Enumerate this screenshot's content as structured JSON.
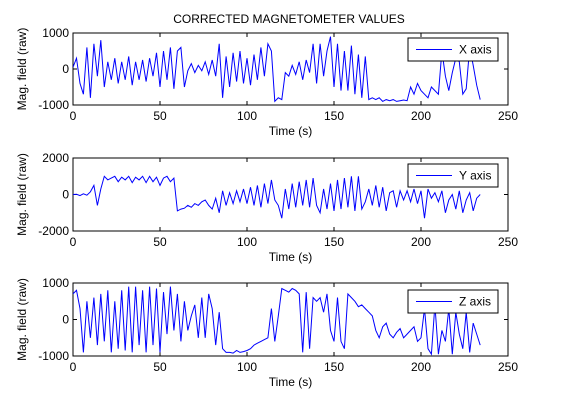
{
  "figure": {
    "title": "CORRECTED MAGNETOMETER VALUES"
  },
  "colors": {
    "line": "#0000ff",
    "axes": "#000000",
    "background": "#ffffff"
  },
  "chart_data": [
    {
      "type": "line",
      "title": "CORRECTED MAGNETOMETER VALUES",
      "xlabel": "Time (s)",
      "ylabel": "Mag. field (raw)",
      "xlim": [
        0,
        250
      ],
      "ylim": [
        -1000,
        1000
      ],
      "xticks": [
        "0",
        "50",
        "100",
        "150",
        "200",
        "250"
      ],
      "yticks": [
        "1000",
        "0",
        "-1000"
      ],
      "legend": "top-right",
      "series": [
        {
          "name": "X axis",
          "x": [
            0,
            2,
            4,
            6,
            8,
            10,
            12,
            14,
            16,
            18,
            20,
            22,
            24,
            26,
            28,
            30,
            32,
            34,
            36,
            38,
            40,
            42,
            44,
            46,
            48,
            50,
            52,
            54,
            56,
            58,
            60,
            62,
            64,
            66,
            68,
            70,
            72,
            74,
            76,
            78,
            80,
            82,
            84,
            86,
            88,
            90,
            92,
            94,
            96,
            98,
            100,
            102,
            104,
            106,
            108,
            110,
            112,
            114,
            116,
            118,
            120,
            122,
            124,
            126,
            128,
            130,
            132,
            134,
            136,
            138,
            140,
            142,
            144,
            146,
            148,
            150,
            152,
            154,
            156,
            158,
            160,
            162,
            164,
            166,
            168,
            170,
            172,
            174,
            176,
            178,
            180,
            182,
            184,
            186,
            188,
            190,
            192,
            194,
            196,
            198,
            200,
            202,
            204,
            206,
            208,
            210,
            212,
            214,
            216,
            218,
            220,
            222,
            224,
            226,
            228,
            230,
            232,
            234
          ],
          "y": [
            50,
            300,
            -400,
            -700,
            600,
            -800,
            700,
            -200,
            800,
            -500,
            200,
            -300,
            300,
            -400,
            200,
            -300,
            350,
            -450,
            200,
            -300,
            250,
            -350,
            300,
            -200,
            450,
            -500,
            500,
            -300,
            600,
            -550,
            500,
            600,
            -500,
            -50,
            150,
            -100,
            100,
            -50,
            200,
            -150,
            250,
            -200,
            700,
            -800,
            350,
            -500,
            450,
            -350,
            500,
            -400,
            300,
            -450,
            400,
            -300,
            600,
            -200,
            700,
            500,
            -900,
            -800,
            -850,
            -100,
            -200,
            100,
            -150,
            200,
            -300,
            250,
            -100,
            700,
            -400,
            700,
            -200,
            500,
            900,
            -500,
            700,
            -600,
            500,
            -600,
            650,
            -700,
            400,
            -800,
            350,
            -850,
            -800,
            -850,
            -800,
            -900,
            -850,
            -880,
            -850,
            -900,
            -880,
            -860,
            -880,
            -500,
            -700,
            -400,
            -600,
            -700,
            -800,
            -500,
            -600,
            -700,
            500,
            -200,
            -600,
            -100,
            300,
            200,
            -700,
            -550,
            600,
            100,
            -450,
            -850
          ]
        }
      ]
    },
    {
      "type": "line",
      "xlabel": "Time (s)",
      "ylabel": "Mag. field (raw)",
      "xlim": [
        0,
        250
      ],
      "ylim": [
        -2000,
        2000
      ],
      "xticks": [
        "0",
        "50",
        "100",
        "150",
        "200",
        "250"
      ],
      "yticks": [
        "2000",
        "0",
        "-2000"
      ],
      "legend": "top-right",
      "series": [
        {
          "name": "Y axis",
          "x": [
            0,
            2,
            4,
            6,
            8,
            10,
            12,
            14,
            16,
            18,
            20,
            22,
            24,
            26,
            28,
            30,
            32,
            34,
            36,
            38,
            40,
            42,
            44,
            46,
            48,
            50,
            52,
            54,
            56,
            58,
            60,
            62,
            64,
            66,
            68,
            70,
            72,
            74,
            76,
            78,
            80,
            82,
            84,
            86,
            88,
            90,
            92,
            94,
            96,
            98,
            100,
            102,
            104,
            106,
            108,
            110,
            112,
            114,
            116,
            118,
            120,
            122,
            124,
            126,
            128,
            130,
            132,
            134,
            136,
            138,
            140,
            142,
            144,
            146,
            148,
            150,
            152,
            154,
            156,
            158,
            160,
            162,
            164,
            166,
            168,
            170,
            172,
            174,
            176,
            178,
            180,
            182,
            184,
            186,
            188,
            190,
            192,
            194,
            196,
            198,
            200,
            202,
            204,
            206,
            208,
            210,
            212,
            214,
            216,
            218,
            220,
            222,
            224,
            226,
            228,
            230,
            232,
            234
          ],
          "y": [
            0,
            10,
            -60,
            40,
            -40,
            150,
            500,
            -600,
            300,
            1000,
            800,
            900,
            1000,
            700,
            950,
            800,
            1000,
            650,
            950,
            800,
            1000,
            650,
            1000,
            700,
            950,
            500,
            900,
            1000,
            700,
            900,
            -900,
            -800,
            -750,
            -600,
            -700,
            -500,
            -600,
            -400,
            -300,
            -600,
            -800,
            -200,
            -1000,
            200,
            -600,
            100,
            -500,
            200,
            -400,
            300,
            -500,
            400,
            -600,
            500,
            -700,
            600,
            -500,
            800,
            -300,
            -600,
            -1300,
            300,
            -800,
            600,
            -700,
            700,
            -600,
            800,
            -700,
            900,
            -600,
            -1000,
            300,
            -800,
            600,
            -900,
            800,
            -800,
            900,
            -700,
            1000,
            -900,
            1000,
            -800,
            -400,
            300,
            -600,
            500,
            -700,
            400,
            -900,
            100,
            200,
            -700,
            200,
            -300,
            200,
            -400,
            300,
            -500,
            200,
            -1300,
            300,
            -200,
            100,
            -400,
            200,
            -1000,
            -300,
            0,
            -800,
            200,
            -1000,
            -300,
            100,
            -900,
            -200,
            0
          ]
        }
      ]
    },
    {
      "type": "line",
      "xlabel": "Time (s)",
      "ylabel": "Mag. field (raw)",
      "xlim": [
        0,
        250
      ],
      "ylim": [
        -1000,
        1000
      ],
      "xticks": [
        "0",
        "50",
        "100",
        "150",
        "200",
        "250"
      ],
      "yticks": [
        "1000",
        "0",
        "-1000"
      ],
      "legend": "top-right",
      "series": [
        {
          "name": "Z axis",
          "x": [
            0,
            2,
            4,
            6,
            8,
            10,
            12,
            14,
            16,
            18,
            20,
            22,
            24,
            26,
            28,
            30,
            32,
            34,
            36,
            38,
            40,
            42,
            44,
            46,
            48,
            50,
            52,
            54,
            56,
            58,
            60,
            62,
            64,
            66,
            68,
            70,
            72,
            74,
            76,
            78,
            80,
            82,
            84,
            86,
            88,
            90,
            92,
            94,
            96,
            98,
            100,
            102,
            104,
            106,
            108,
            110,
            112,
            114,
            116,
            118,
            120,
            122,
            124,
            126,
            128,
            130,
            132,
            134,
            136,
            138,
            140,
            142,
            144,
            146,
            148,
            150,
            152,
            154,
            156,
            158,
            160,
            162,
            164,
            166,
            168,
            170,
            172,
            174,
            176,
            178,
            180,
            182,
            184,
            186,
            188,
            190,
            192,
            194,
            196,
            198,
            200,
            202,
            204,
            206,
            208,
            210,
            212,
            214,
            216,
            218,
            220,
            222,
            224,
            226,
            228,
            230,
            232,
            234
          ],
          "y": [
            700,
            800,
            300,
            -900,
            500,
            -500,
            600,
            -700,
            700,
            -600,
            800,
            -900,
            500,
            -800,
            800,
            -850,
            900,
            -900,
            900,
            -700,
            800,
            -900,
            900,
            -700,
            850,
            -900,
            750,
            -400,
            900,
            -300,
            700,
            -600,
            500,
            -300,
            100,
            400,
            -500,
            600,
            -500,
            700,
            300,
            -700,
            200,
            -800,
            -900,
            -900,
            -920,
            -850,
            -900,
            -880,
            -850,
            -800,
            -700,
            -650,
            -600,
            -550,
            -500,
            300,
            -600,
            100,
            850,
            800,
            750,
            850,
            800,
            700,
            -900,
            750,
            -800,
            600,
            500,
            600,
            200,
            700,
            -300,
            -600,
            600,
            -600,
            -800,
            700,
            600,
            500,
            350,
            400,
            300,
            200,
            100,
            -300,
            -500,
            -200,
            -100,
            -400,
            -500,
            -350,
            -250,
            -500,
            -400,
            -300,
            -200,
            -600,
            -500,
            300,
            -800,
            -950,
            400,
            -950,
            -300,
            -600,
            300,
            -950,
            200,
            -400,
            -800,
            200,
            -900,
            -100,
            -400,
            -700
          ]
        }
      ]
    }
  ]
}
